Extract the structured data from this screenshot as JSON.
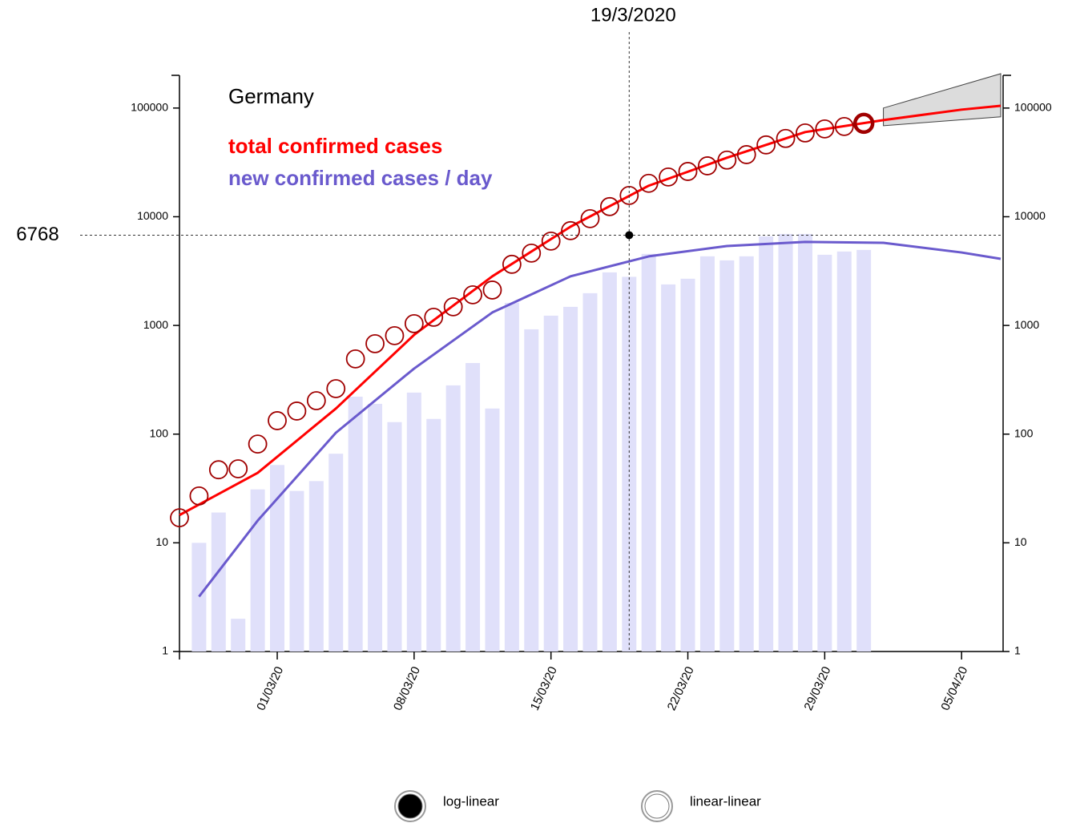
{
  "chart_data": {
    "type": "combo",
    "title": "Germany",
    "log_scale": true,
    "ylim": [
      1,
      200000
    ],
    "yticks": [
      1,
      10,
      100,
      1000,
      10000,
      100000
    ],
    "xlim": [
      "2020-02-25",
      "2020-04-07"
    ],
    "xticks": [
      {
        "value": "2020-03-01",
        "label": "01/03/20"
      },
      {
        "value": "2020-03-08",
        "label": "08/03/20"
      },
      {
        "value": "2020-03-15",
        "label": "15/03/20"
      },
      {
        "value": "2020-03-22",
        "label": "22/03/20"
      },
      {
        "value": "2020-03-29",
        "label": "29/03/20"
      },
      {
        "value": "2020-04-05",
        "label": "05/04/20"
      }
    ],
    "series": [
      {
        "name": "total confirmed cases",
        "type": "line",
        "color": "#ff0000",
        "x": [
          "2020-02-25",
          "2020-02-29",
          "2020-03-04",
          "2020-03-08",
          "2020-03-12",
          "2020-03-16",
          "2020-03-20",
          "2020-03-24",
          "2020-03-28",
          "2020-04-01",
          "2020-04-05",
          "2020-04-07"
        ],
        "values": [
          18,
          44,
          172,
          819,
          2830,
          8100,
          19300,
          34900,
          60100,
          77500,
          96700,
          105000
        ]
      },
      {
        "name": "new confirmed cases / day",
        "type": "line",
        "color": "#6a5acd",
        "x": [
          "2020-02-26",
          "2020-02-29",
          "2020-03-04",
          "2020-03-08",
          "2020-03-12",
          "2020-03-16",
          "2020-03-20",
          "2020-03-24",
          "2020-03-28",
          "2020-04-01",
          "2020-04-05",
          "2020-04-07"
        ],
        "values": [
          3.2,
          16,
          103,
          401,
          1316,
          2830,
          4320,
          5380,
          5870,
          5760,
          4690,
          4100
        ]
      },
      {
        "type": "scatter",
        "color": "#a00000",
        "x": [
          "2020-02-25",
          "2020-02-26",
          "2020-02-27",
          "2020-02-28",
          "2020-02-29",
          "2020-03-01",
          "2020-03-02",
          "2020-03-03",
          "2020-03-04",
          "2020-03-05",
          "2020-03-06",
          "2020-03-07",
          "2020-03-08",
          "2020-03-09",
          "2020-03-10",
          "2020-03-11",
          "2020-03-12",
          "2020-03-13",
          "2020-03-14",
          "2020-03-15",
          "2020-03-16",
          "2020-03-17",
          "2020-03-18",
          "2020-03-19",
          "2020-03-20",
          "2020-03-21",
          "2020-03-22",
          "2020-03-23",
          "2020-03-24",
          "2020-03-25",
          "2020-03-26",
          "2020-03-27",
          "2020-03-28",
          "2020-03-29",
          "2020-03-30",
          "2020-03-31"
        ],
        "values": [
          17,
          27,
          47,
          48,
          81,
          133,
          163,
          203,
          262,
          492,
          679,
          805,
          1038,
          1189,
          1483,
          1913,
          2117,
          3650,
          4625,
          5970,
          7450,
          9600,
          12400,
          15700,
          20300,
          23200,
          26100,
          29400,
          33200,
          37300,
          45800,
          52500,
          59000,
          64300,
          67600,
          72300
        ]
      },
      {
        "type": "bar",
        "color": "#e0e0fa",
        "x": [
          "2020-02-26",
          "2020-02-27",
          "2020-02-28",
          "2020-02-29",
          "2020-03-01",
          "2020-03-02",
          "2020-03-03",
          "2020-03-04",
          "2020-03-05",
          "2020-03-06",
          "2020-03-07",
          "2020-03-08",
          "2020-03-09",
          "2020-03-10",
          "2020-03-11",
          "2020-03-12",
          "2020-03-13",
          "2020-03-14",
          "2020-03-15",
          "2020-03-16",
          "2020-03-17",
          "2020-03-18",
          "2020-03-19",
          "2020-03-20",
          "2020-03-21",
          "2020-03-22",
          "2020-03-23",
          "2020-03-24",
          "2020-03-25",
          "2020-03-26",
          "2020-03-27",
          "2020-03-28",
          "2020-03-29",
          "2020-03-30",
          "2020-03-31"
        ],
        "values": [
          10,
          19,
          2,
          31,
          52,
          30,
          37,
          66,
          221,
          190,
          129,
          241,
          138,
          281,
          451,
          172,
          1614,
          922,
          1230,
          1483,
          1978,
          3077,
          2800,
          4550,
          2385,
          2690,
          4324,
          3970,
          4324,
          6600,
          6950,
          6950,
          4470,
          4790,
          4950
        ]
      },
      {
        "type": "band",
        "color": "#dcdcdc",
        "x": [
          "2020-04-01",
          "2020-04-07"
        ],
        "lower": [
          68800,
          83000
        ],
        "upper": [
          100000,
          207000
        ]
      }
    ],
    "crosshair": {
      "x": "2020-03-19",
      "label": "19/3/2020",
      "y": 6768
    },
    "controls": [
      {
        "label": "log-linear",
        "selected": true
      },
      {
        "label": "linear-linear",
        "selected": false
      }
    ]
  }
}
